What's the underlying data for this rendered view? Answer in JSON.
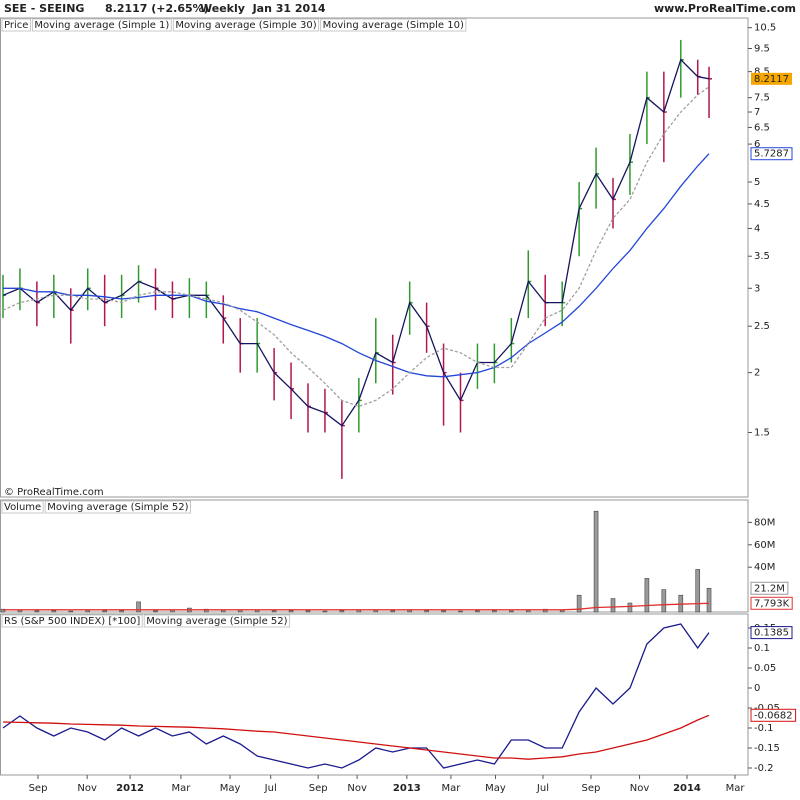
{
  "header": {
    "title": "SEE - SEEING",
    "quote": "8.2117 (+2.65%)",
    "period": "Weekly  Jan 31 2014",
    "site": "www.ProRealTime.com",
    "copyright": "© ProRealTime.com"
  },
  "chart_data": [
    {
      "type": "hlc",
      "log": true,
      "ylim": [
        1.1,
        11
      ],
      "yticks": [
        1.5,
        2,
        2.5,
        3,
        3.5,
        4,
        4.5,
        5,
        6,
        6.5,
        7,
        7.5,
        8.5,
        9.5,
        10.5
      ],
      "up_color": "#2e9b2e",
      "down_color": "#b3154d",
      "series": [
        {
          "name": "Price",
          "color": "#000000",
          "label_last": true,
          "label_fill": "#f7a600",
          "values": [
            2.9,
            3.0,
            2.8,
            2.95,
            2.7,
            3.0,
            2.8,
            2.9,
            3.1,
            3.0,
            2.85,
            2.9,
            2.9,
            2.6,
            2.3,
            2.3,
            2.0,
            1.85,
            1.7,
            1.65,
            1.55,
            1.75,
            2.2,
            2.1,
            2.8,
            2.5,
            2.0,
            1.75,
            2.1,
            2.1,
            2.3,
            3.1,
            2.8,
            2.8,
            4.4,
            5.2,
            4.6,
            5.5,
            7.5,
            7.0,
            9.0,
            8.3,
            8.2117
          ],
          "high": [
            3.2,
            3.3,
            3.1,
            3.2,
            3.0,
            3.3,
            3.2,
            3.2,
            3.35,
            3.3,
            3.1,
            3.15,
            3.1,
            2.9,
            2.6,
            2.6,
            2.25,
            2.1,
            1.9,
            1.85,
            1.75,
            1.95,
            2.6,
            2.4,
            3.1,
            2.8,
            2.3,
            2.0,
            2.3,
            2.3,
            2.6,
            3.6,
            3.2,
            3.1,
            5.0,
            5.9,
            5.1,
            6.3,
            8.5,
            8.5,
            9.9,
            9.0,
            8.7
          ],
          "low": [
            2.6,
            2.7,
            2.5,
            2.6,
            2.3,
            2.7,
            2.5,
            2.6,
            2.8,
            2.7,
            2.6,
            2.6,
            2.6,
            2.3,
            2.0,
            2.0,
            1.75,
            1.6,
            1.5,
            1.5,
            1.2,
            1.5,
            1.9,
            1.8,
            2.4,
            2.2,
            1.55,
            1.5,
            1.85,
            1.9,
            2.1,
            2.6,
            2.5,
            2.5,
            3.5,
            4.4,
            4.0,
            4.7,
            6.0,
            5.5,
            7.5,
            7.6,
            6.8
          ]
        },
        {
          "name": "Moving average (Simple 1)",
          "color": "#14145e"
        },
        {
          "name": "Moving average (Simple 30)",
          "color": "#2346d8",
          "label_last": true,
          "values": [
            3.0,
            3.0,
            2.95,
            2.95,
            2.9,
            2.9,
            2.88,
            2.85,
            2.87,
            2.9,
            2.9,
            2.9,
            2.82,
            2.78,
            2.72,
            2.68,
            2.6,
            2.52,
            2.45,
            2.38,
            2.3,
            2.2,
            2.12,
            2.06,
            2.0,
            1.97,
            1.96,
            1.98,
            2.0,
            2.05,
            2.15,
            2.3,
            2.42,
            2.55,
            2.75,
            3.0,
            3.3,
            3.6,
            4.0,
            4.4,
            4.9,
            5.4,
            5.7287
          ]
        },
        {
          "name": "Moving average (Simple 10)",
          "color": "#a0a0a0",
          "dash": true,
          "values": [
            2.7,
            2.8,
            2.85,
            2.9,
            2.9,
            2.85,
            2.85,
            2.8,
            2.9,
            2.95,
            2.95,
            2.9,
            2.85,
            2.8,
            2.7,
            2.55,
            2.4,
            2.2,
            2.05,
            1.9,
            1.75,
            1.7,
            1.75,
            1.85,
            2.0,
            2.15,
            2.25,
            2.2,
            2.1,
            2.05,
            2.05,
            2.3,
            2.6,
            2.7,
            3.0,
            3.6,
            4.2,
            4.6,
            5.5,
            6.3,
            7.0,
            7.6,
            7.9
          ]
        }
      ]
    },
    {
      "type": "bar",
      "ylim": [
        0,
        100000000
      ],
      "yticks": [
        {
          "value": 40000000,
          "label": "40M"
        },
        {
          "value": 60000000,
          "label": "60M"
        },
        {
          "value": 80000000,
          "label": "80M"
        }
      ],
      "series": [
        {
          "name": "Volume",
          "color": "#9a9a9a",
          "values": [
            2500000,
            1500000,
            1000000,
            1200000,
            800000,
            1500000,
            1000000,
            1200000,
            9000000,
            1000000,
            1800000,
            3500000,
            2500000,
            1500000,
            2000000,
            1500000,
            1000000,
            1200000,
            1000000,
            800000,
            1200000,
            2000000,
            1500000,
            1000000,
            1500000,
            1200000,
            1000000,
            800000,
            1000000,
            1200000,
            900000,
            1500000,
            2500000,
            1500000,
            15000000,
            90000000,
            12000000,
            8000000,
            30000000,
            20000000,
            15000000,
            38000000,
            21200000
          ],
          "value_labels": [
            null,
            null,
            null,
            null,
            null,
            null,
            null,
            null,
            null,
            null,
            null,
            null,
            null,
            null,
            null,
            null,
            null,
            null,
            null,
            null,
            null,
            null,
            null,
            null,
            null,
            null,
            null,
            null,
            null,
            null,
            null,
            null,
            null,
            null,
            null,
            null,
            null,
            null,
            null,
            null,
            null,
            null,
            "21.2M"
          ]
        },
        {
          "name": "Moving average (Simple 52)",
          "color": "#e03030",
          "values": [
            2000000,
            2000000,
            2000000,
            2000000,
            2000000,
            2000000,
            2000000,
            2000000,
            2000000,
            2000000,
            2000000,
            2000000,
            2000000,
            2000000,
            2000000,
            2000000,
            2000000,
            2000000,
            2000000,
            2000000,
            2000000,
            2000000,
            2000000,
            2000000,
            2000000,
            2000000,
            2000000,
            2000000,
            2000000,
            2000000,
            2000000,
            2000000,
            2000000,
            2000000,
            2500000,
            4000000,
            4500000,
            5000000,
            5800000,
            6500000,
            7000000,
            7500000,
            7793000
          ],
          "value_labels": [
            null,
            null,
            null,
            null,
            null,
            null,
            null,
            null,
            null,
            null,
            null,
            null,
            null,
            null,
            null,
            null,
            null,
            null,
            null,
            null,
            null,
            null,
            null,
            null,
            null,
            null,
            null,
            null,
            null,
            null,
            null,
            null,
            null,
            null,
            null,
            null,
            null,
            null,
            null,
            null,
            null,
            null,
            "7,793K"
          ]
        }
      ]
    },
    {
      "type": "line",
      "ylim": [
        -0.2175,
        0.185
      ],
      "yticks": [
        -0.2,
        -0.15,
        -0.1,
        -0.05,
        0,
        0.05,
        0.1,
        0.15
      ],
      "x": [
        0,
        3,
        6,
        9,
        12,
        15,
        18,
        21,
        24,
        27,
        30,
        33,
        36,
        39,
        42,
        45,
        48,
        51,
        54,
        57,
        60,
        63,
        66,
        69,
        72,
        75,
        78,
        81,
        84,
        87,
        90,
        93,
        96,
        99,
        102,
        105,
        108,
        111,
        114,
        117,
        120,
        123,
        125
      ],
      "xlim": [
        -0.53,
        131.9
      ],
      "xticks": [
        {
          "value": 6.2,
          "label": "Sep"
        },
        {
          "value": 14.9,
          "label": "Nov"
        },
        {
          "value": 22.5,
          "label": "2012"
        },
        {
          "value": 31.5,
          "label": "Mar"
        },
        {
          "value": 40.2,
          "label": "May"
        },
        {
          "value": 47.4,
          "label": "Jul"
        },
        {
          "value": 55.8,
          "label": "Sep"
        },
        {
          "value": 62.7,
          "label": "Nov"
        },
        {
          "value": 71.5,
          "label": "2013"
        },
        {
          "value": 79.3,
          "label": "Mar"
        },
        {
          "value": 87.2,
          "label": "May"
        },
        {
          "value": 95.6,
          "label": "Jul"
        },
        {
          "value": 104.1,
          "label": "Sep"
        },
        {
          "value": 112.7,
          "label": "Nov"
        },
        {
          "value": 121.1,
          "label": "2014"
        },
        {
          "value": 129.6,
          "label": "Mar"
        }
      ],
      "series": [
        {
          "name": "RS (S&P 500 INDEX) [*100]",
          "color": "#1a1a8c",
          "label_last": true,
          "values": [
            -0.1,
            -0.07,
            -0.1,
            -0.12,
            -0.1,
            -0.11,
            -0.13,
            -0.1,
            -0.12,
            -0.1,
            -0.12,
            -0.11,
            -0.14,
            -0.12,
            -0.14,
            -0.17,
            -0.18,
            -0.19,
            -0.2,
            -0.19,
            -0.2,
            -0.18,
            -0.15,
            -0.16,
            -0.15,
            -0.15,
            -0.2,
            -0.19,
            -0.18,
            -0.19,
            -0.13,
            -0.13,
            -0.15,
            -0.15,
            -0.06,
            0,
            -0.04,
            0,
            0.11,
            0.15,
            0.16,
            0.1,
            0.1385
          ]
        },
        {
          "name": "Moving average (Simple 52)",
          "color": "#d01010",
          "label_last": true,
          "values": [
            -0.085,
            -0.086,
            -0.087,
            -0.088,
            -0.09,
            -0.091,
            -0.092,
            -0.093,
            -0.095,
            -0.096,
            -0.097,
            -0.098,
            -0.1,
            -0.102,
            -0.105,
            -0.108,
            -0.11,
            -0.115,
            -0.12,
            -0.125,
            -0.13,
            -0.135,
            -0.14,
            -0.145,
            -0.15,
            -0.155,
            -0.16,
            -0.165,
            -0.17,
            -0.175,
            -0.175,
            -0.178,
            -0.175,
            -0.172,
            -0.165,
            -0.16,
            -0.15,
            -0.14,
            -0.13,
            -0.115,
            -0.1,
            -0.08,
            -0.0682
          ]
        }
      ]
    }
  ]
}
